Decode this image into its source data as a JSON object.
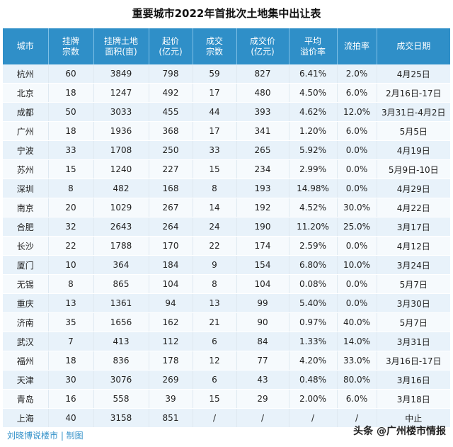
{
  "title": "重要城市2022年首批次土地集中出让表",
  "columns": [
    "城市",
    "挂牌\n宗数",
    "挂牌土地\n面积(亩)",
    "起价\n(亿元)",
    "成交\n宗数",
    "成交价\n(亿元)",
    "平均\n溢价率",
    "流拍率",
    "成交日期"
  ],
  "rows": [
    [
      "杭州",
      "60",
      "3849",
      "798",
      "59",
      "827",
      "6.41%",
      "2.0%",
      "4月25日"
    ],
    [
      "北京",
      "18",
      "1247",
      "492",
      "17",
      "480",
      "4.50%",
      "6.0%",
      "2月16日-17日"
    ],
    [
      "成都",
      "50",
      "3033",
      "455",
      "44",
      "393",
      "4.62%",
      "12.0%",
      "3月31日-4月2日"
    ],
    [
      "广州",
      "18",
      "1936",
      "368",
      "17",
      "341",
      "1.20%",
      "6.0%",
      "5月5日"
    ],
    [
      "宁波",
      "33",
      "1708",
      "250",
      "33",
      "265",
      "5.92%",
      "0.0%",
      "4月19日"
    ],
    [
      "苏州",
      "15",
      "1240",
      "227",
      "15",
      "234",
      "2.99%",
      "0.0%",
      "5月9日-10日"
    ],
    [
      "深圳",
      "8",
      "482",
      "168",
      "8",
      "193",
      "14.98%",
      "0.0%",
      "4月29日"
    ],
    [
      "南京",
      "20",
      "1029",
      "267",
      "14",
      "192",
      "4.52%",
      "30.0%",
      "4月22日"
    ],
    [
      "合肥",
      "32",
      "2643",
      "264",
      "24",
      "190",
      "11.20%",
      "25.0%",
      "3月17日"
    ],
    [
      "长沙",
      "22",
      "1788",
      "170",
      "22",
      "174",
      "2.59%",
      "0.0%",
      "4月12日"
    ],
    [
      "厦门",
      "10",
      "364",
      "184",
      "9",
      "154",
      "6.80%",
      "10.0%",
      "3月24日"
    ],
    [
      "无锡",
      "8",
      "865",
      "104",
      "8",
      "104",
      "0.08%",
      "0.0%",
      "5月7日"
    ],
    [
      "重庆",
      "13",
      "1361",
      "94",
      "13",
      "99",
      "5.40%",
      "0.0%",
      "3月30日"
    ],
    [
      "济南",
      "35",
      "1656",
      "162",
      "21",
      "90",
      "0.97%",
      "40.0%",
      "5月7日"
    ],
    [
      "武汉",
      "7",
      "413",
      "112",
      "6",
      "84",
      "1.33%",
      "14.0%",
      "3月31日"
    ],
    [
      "福州",
      "18",
      "836",
      "178",
      "12",
      "77",
      "4.20%",
      "33.0%",
      "3月16日-17日"
    ],
    [
      "天津",
      "30",
      "3076",
      "269",
      "6",
      "43",
      "0.48%",
      "80.0%",
      "3月16日"
    ],
    [
      "青岛",
      "16",
      "558",
      "39",
      "15",
      "29",
      "2.00%",
      "6.0%",
      "3月18日"
    ],
    [
      "上海",
      "40",
      "3158",
      "851",
      "/",
      "/",
      "/",
      "/",
      "中止"
    ]
  ],
  "footer": {
    "credit": "刘晓博说楼市 | 制图",
    "source_watermark": "头条 @广州楼市情报"
  }
}
